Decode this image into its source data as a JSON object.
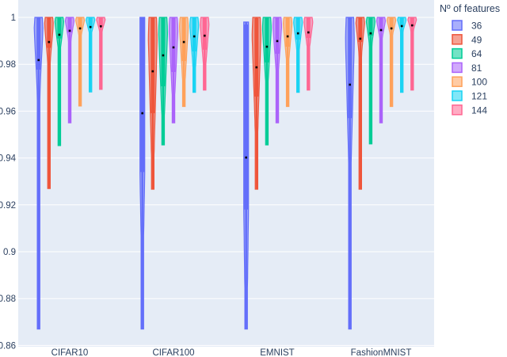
{
  "chart_data": {
    "type": "violin",
    "title": "",
    "xlabel": "",
    "ylabel": "",
    "ylim": [
      0.86,
      1.0
    ],
    "yticks": [
      0.86,
      0.88,
      0.9,
      0.92,
      0.94,
      0.96,
      0.98,
      1
    ],
    "ytick_labels": [
      "0.86",
      "0.88",
      "0.9",
      "0.92",
      "0.94",
      "0.96",
      "0.98",
      "1"
    ],
    "grid": true,
    "legend_position": "right",
    "legend_title": "Nº of features",
    "categories": [
      "CIFAR10",
      "CIFAR100",
      "EMNIST",
      "FashionMNIST"
    ],
    "series": [
      {
        "name": "36",
        "color": "#636efa",
        "median": [
          0.9818,
          0.9591,
          0.9402,
          0.9713
        ],
        "q1": [
          0.9777,
          0.934,
          0.918,
          0.957
        ],
        "q3": [
          1.0,
          1.0,
          0.997,
          1.0
        ],
        "min": [
          0.867,
          0.867,
          0.867,
          0.867
        ],
        "max": [
          1.0,
          1.0,
          0.998,
          1.0
        ]
      },
      {
        "name": "49",
        "color": "#ef553b",
        "median": [
          0.9895,
          0.977,
          0.9787,
          0.9909
        ],
        "q1": [
          0.987,
          0.9591,
          0.9662,
          0.9895
        ],
        "q3": [
          1.0,
          1.0,
          0.9997,
          1.0
        ],
        "min": [
          0.927,
          0.9267,
          0.9267,
          0.9267
        ],
        "max": [
          1.0,
          1.0,
          1.0,
          1.0
        ]
      },
      {
        "name": "64",
        "color": "#00cc96",
        "median": [
          0.9926,
          0.9838,
          0.9875,
          0.9932
        ],
        "q1": [
          0.991,
          0.9706,
          0.9808,
          0.9922
        ],
        "q3": [
          1.0,
          1.0,
          1.0,
          1.0
        ],
        "min": [
          0.9453,
          0.9456,
          0.9456,
          0.946
        ],
        "max": [
          1.0,
          1.0,
          1.0,
          1.0
        ]
      },
      {
        "name": "81",
        "color": "#ab63fa",
        "median": [
          0.9943,
          0.9872,
          0.9899,
          0.9946
        ],
        "q1": [
          0.9935,
          0.9767,
          0.9845,
          0.994
        ],
        "q3": [
          1.0,
          1.0,
          1.0,
          1.0
        ],
        "min": [
          0.955,
          0.955,
          0.955,
          0.955
        ],
        "max": [
          1.0,
          1.0,
          1.0,
          1.0
        ]
      },
      {
        "name": "100",
        "color": "#ffa15a",
        "median": [
          0.9953,
          0.9895,
          0.9919,
          0.9953
        ],
        "q1": [
          0.995,
          0.9814,
          0.9875,
          0.995
        ],
        "q3": [
          1.0,
          1.0,
          1.0,
          1.0
        ],
        "min": [
          0.9622,
          0.962,
          0.962,
          0.962
        ],
        "max": [
          1.0,
          1.0,
          1.0,
          1.0
        ]
      },
      {
        "name": "121",
        "color": "#19d3f3",
        "median": [
          0.9959,
          0.9919,
          0.9932,
          0.9963
        ],
        "q1": [
          0.9955,
          0.9855,
          0.9905,
          0.996
        ],
        "q3": [
          1.0,
          1.0,
          1.0,
          1.0
        ],
        "min": [
          0.9682,
          0.968,
          0.968,
          0.968
        ],
        "max": [
          1.0,
          1.0,
          1.0,
          1.0
        ]
      },
      {
        "name": "144",
        "color": "#ff6692",
        "median": [
          0.9962,
          0.9922,
          0.9936,
          0.9966
        ],
        "q1": [
          0.996,
          0.9862,
          0.9912,
          0.9963
        ],
        "q3": [
          1.0,
          1.0,
          1.0,
          1.0
        ],
        "min": [
          0.9693,
          0.969,
          0.969,
          0.969
        ],
        "max": [
          1.0,
          1.0,
          1.0,
          1.0
        ]
      }
    ]
  },
  "legend": {
    "title": "Nº of features",
    "items": [
      {
        "label": "36",
        "color": "#636efa"
      },
      {
        "label": "49",
        "color": "#ef553b"
      },
      {
        "label": "64",
        "color": "#00cc96"
      },
      {
        "label": "81",
        "color": "#ab63fa"
      },
      {
        "label": "100",
        "color": "#ffa15a"
      },
      {
        "label": "121",
        "color": "#19d3f3"
      },
      {
        "label": "144",
        "color": "#ff6692"
      }
    ]
  },
  "style": {
    "plot_bg": "#e5ecf6",
    "grid_color": "#ffffff",
    "median_color": "#000000"
  }
}
